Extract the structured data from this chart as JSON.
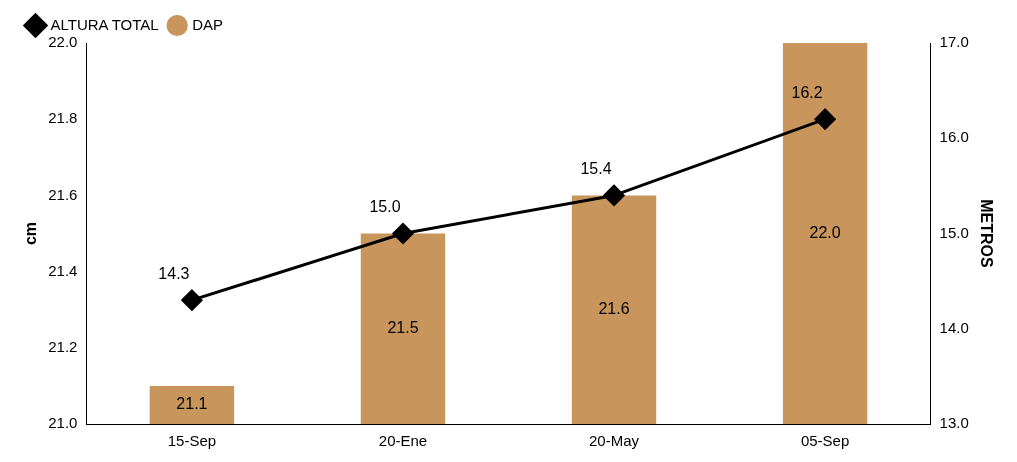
{
  "chart_data": {
    "type": "bar",
    "categories": [
      "15-Sep",
      "20-Ene",
      "20-May",
      "05-Sep"
    ],
    "series": [
      {
        "name": "DAP",
        "color": "#c8955c",
        "values": [
          21.1,
          21.5,
          21.6,
          22.0
        ],
        "value_labels": [
          "21.1",
          "21.5",
          "21.6",
          "22.0"
        ]
      },
      {
        "name": "ALTURA TOTAL",
        "type": "line",
        "axis": "y2",
        "color": "#000000",
        "values": [
          14.3,
          15.0,
          15.4,
          16.2
        ],
        "value_labels": [
          "14.3",
          "15.0",
          "15.4",
          "16.2"
        ]
      }
    ],
    "ylabel": "cm",
    "y2label": "METROS",
    "ylim": [
      21.0,
      22.0
    ],
    "yticks": [
      {
        "value": 21.0,
        "label": "21.0"
      },
      {
        "value": 21.2,
        "label": "21.2"
      },
      {
        "value": 21.4,
        "label": "21.4"
      },
      {
        "value": 21.6,
        "label": "21.6"
      },
      {
        "value": 21.8,
        "label": "21.8"
      },
      {
        "value": 22.0,
        "label": "22.0"
      }
    ],
    "y2lim": [
      13.0,
      17.0
    ],
    "y2ticks": [
      {
        "value": 13.0,
        "label": "13.0"
      },
      {
        "value": 14.0,
        "label": "14.0"
      },
      {
        "value": 15.0,
        "label": "15.0"
      },
      {
        "value": 16.0,
        "label": "16.0"
      },
      {
        "value": 17.0,
        "label": "17.0"
      }
    ],
    "legend": "top left",
    "marker": "diamond",
    "line_style": "solid",
    "grid": false
  }
}
